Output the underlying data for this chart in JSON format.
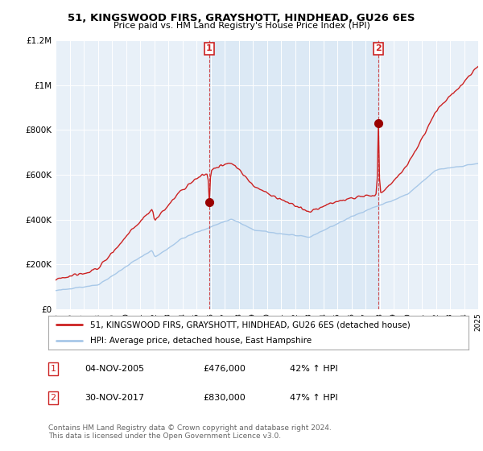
{
  "title": "51, KINGSWOOD FIRS, GRAYSHOTT, HINDHEAD, GU26 6ES",
  "subtitle": "Price paid vs. HM Land Registry's House Price Index (HPI)",
  "legend_line1": "51, KINGSWOOD FIRS, GRAYSHOTT, HINDHEAD, GU26 6ES (detached house)",
  "legend_line2": "HPI: Average price, detached house, East Hampshire",
  "annotation1": {
    "label": "1",
    "date": "04-NOV-2005",
    "price": "£476,000",
    "hpi": "42% ↑ HPI"
  },
  "annotation2": {
    "label": "2",
    "date": "30-NOV-2017",
    "price": "£830,000",
    "hpi": "47% ↑ HPI"
  },
  "footer": "Contains HM Land Registry data © Crown copyright and database right 2024.\nThis data is licensed under the Open Government Licence v3.0.",
  "hpi_color": "#a8c8e8",
  "price_color": "#cc2222",
  "annotation_color": "#cc2222",
  "shade_color": "#ddeeff",
  "bg_color": "#e8f0f8",
  "grid_color": "#ffffff",
  "ylim": [
    0,
    1200000
  ],
  "yticks": [
    0,
    200000,
    400000,
    600000,
    800000,
    1000000,
    1200000
  ],
  "ytick_labels": [
    "£0",
    "£200K",
    "£400K",
    "£600K",
    "£800K",
    "£1M",
    "£1.2M"
  ],
  "sale1_x": 2005.9,
  "sale1_y": 476000,
  "sale2_x": 2017.9,
  "sale2_y": 830000,
  "xmin": 1995,
  "xmax": 2025
}
